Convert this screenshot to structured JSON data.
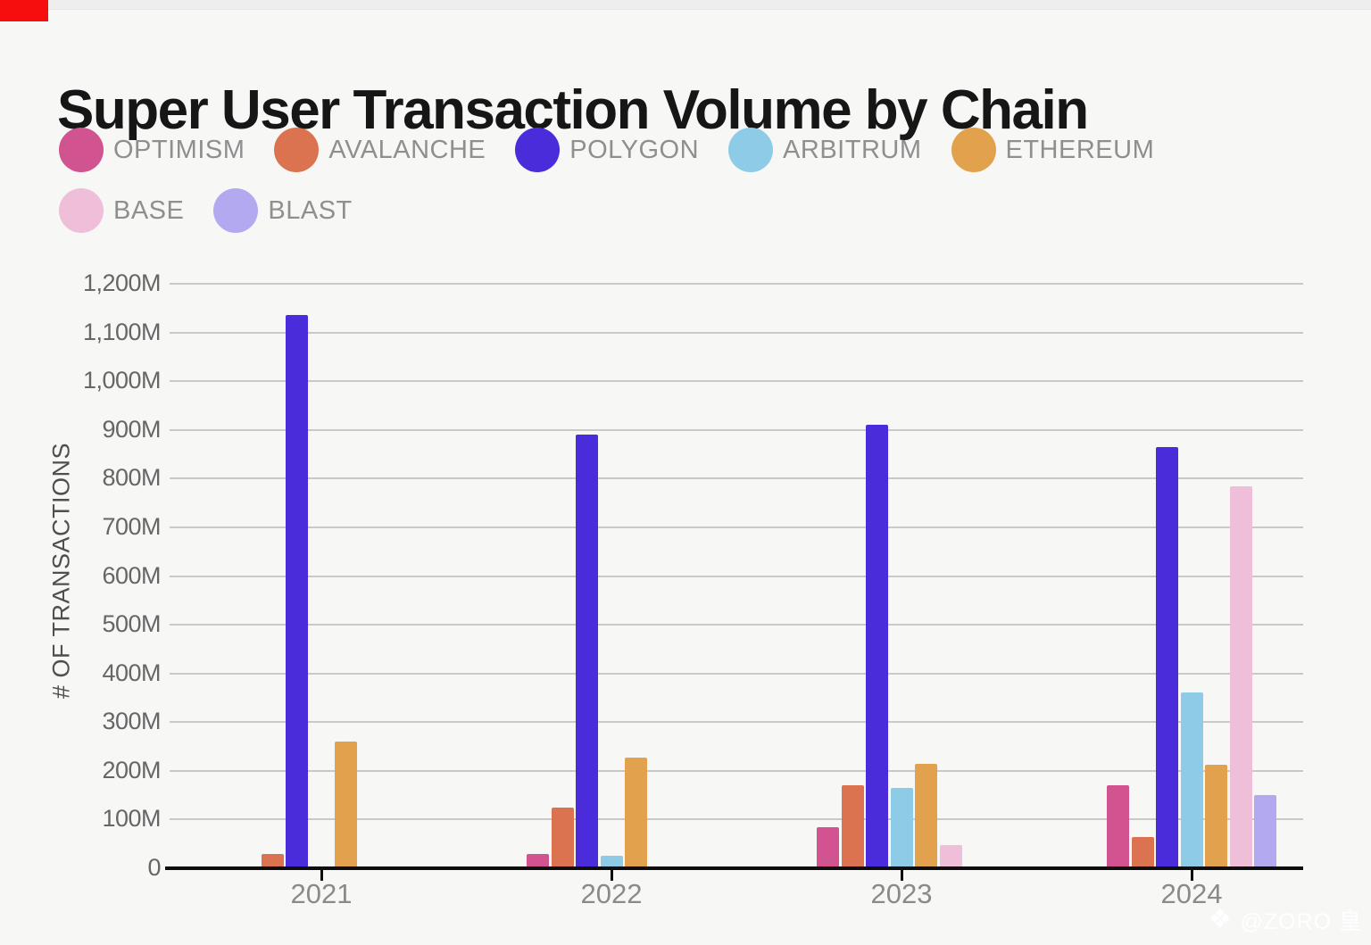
{
  "page": {
    "background_color": "#f7f7f6",
    "corner_fragment_color": "#f60d0d"
  },
  "chart_data": {
    "type": "bar",
    "title": "Super User Transaction Volume by Chain",
    "xlabel": "",
    "ylabel": "# OF TRANSACTIONS",
    "categories": [
      "2021",
      "2022",
      "2023",
      "2024"
    ],
    "series": [
      {
        "name": "OPTIMISM",
        "color": "#d1538f",
        "values": [
          0,
          30,
          85,
          170
        ]
      },
      {
        "name": "AVALANCHE",
        "color": "#dc7350",
        "values": [
          30,
          125,
          170,
          65
        ]
      },
      {
        "name": "POLYGON",
        "color": "#4b2cda",
        "values": [
          1135,
          890,
          910,
          865
        ]
      },
      {
        "name": "ARBITRUM",
        "color": "#8dcbe7",
        "values": [
          0,
          25,
          165,
          360
        ]
      },
      {
        "name": "ETHEREUM",
        "color": "#e2a24d",
        "values": [
          260,
          228,
          215,
          212
        ]
      },
      {
        "name": "BASE",
        "color": "#efbfd9",
        "values": [
          0,
          0,
          48,
          785
        ]
      },
      {
        "name": "BLAST",
        "color": "#b3a9f1",
        "values": [
          0,
          0,
          0,
          150
        ]
      }
    ],
    "ylim": [
      0,
      1200
    ],
    "y_tick_values": [
      0,
      100,
      200,
      300,
      400,
      500,
      600,
      700,
      800,
      900,
      1000,
      1100,
      1200
    ],
    "y_tick_labels": [
      "0",
      "100M",
      "200M",
      "300M",
      "400M",
      "500M",
      "600M",
      "700M",
      "800M",
      "900M",
      "1,000M",
      "1,100M",
      "1,200M"
    ],
    "grid": true,
    "legend_position": "top-left, two rows (5 + 2)"
  },
  "watermark": {
    "icon": "diamond-logo",
    "text": "@ZORO 皇"
  }
}
